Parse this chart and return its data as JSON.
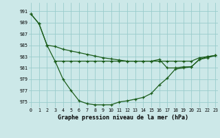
{
  "x": [
    0,
    1,
    2,
    3,
    4,
    5,
    6,
    7,
    8,
    9,
    10,
    11,
    12,
    13,
    14,
    15,
    16,
    17,
    18,
    19,
    20,
    21,
    22,
    23
  ],
  "line1": [
    990.5,
    988.8,
    985.0,
    984.8,
    984.3,
    984.0,
    983.7,
    983.4,
    983.1,
    982.8,
    982.6,
    982.4,
    982.2,
    982.2,
    982.2,
    982.2,
    982.2,
    982.2,
    982.2,
    982.2,
    982.2,
    982.8,
    983.0,
    983.2
  ],
  "line2": [
    990.5,
    988.8,
    985.0,
    982.2,
    979.0,
    977.0,
    975.2,
    974.7,
    974.5,
    974.5,
    974.5,
    975.0,
    975.2,
    975.5,
    975.8,
    976.5,
    978.0,
    979.2,
    980.8,
    981.0,
    981.2,
    982.5,
    982.8,
    983.2
  ],
  "line3_x": [
    3,
    4,
    5,
    6,
    7,
    8,
    9,
    10,
    11,
    12,
    13,
    14,
    15,
    16,
    17,
    18,
    19,
    20,
    21,
    22,
    23
  ],
  "line3_y": [
    982.2,
    982.2,
    982.2,
    982.2,
    982.2,
    982.2,
    982.2,
    982.2,
    982.2,
    982.2,
    982.2,
    982.2,
    982.2,
    982.5,
    981.0,
    981.0,
    981.2,
    981.2,
    982.5,
    983.0,
    983.2
  ],
  "background_color": "#cce8e8",
  "grid_color": "#99cccc",
  "line_color": "#1a5c1a",
  "title": "Graphe pression niveau de la mer (hPa)",
  "yticks": [
    975,
    977,
    979,
    981,
    983,
    985,
    987,
    989,
    991
  ],
  "xticks": [
    0,
    1,
    2,
    3,
    4,
    5,
    6,
    7,
    8,
    9,
    10,
    11,
    12,
    13,
    14,
    15,
    16,
    17,
    18,
    19,
    20,
    21,
    22,
    23
  ],
  "ylim": [
    974.0,
    992.5
  ],
  "xlim": [
    -0.3,
    23.3
  ]
}
